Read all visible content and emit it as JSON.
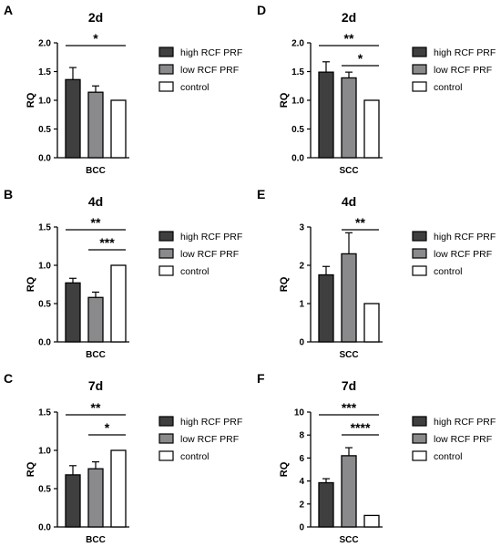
{
  "legend_labels": [
    "high RCF PRF",
    "low RCF PRF",
    "control"
  ],
  "colors": {
    "high": "#3f3f3f",
    "low": "#8a8a8c",
    "control": "#ffffff",
    "axis": "#000000"
  },
  "chart_data": [
    {
      "type": "bar",
      "panel_label": "A",
      "title": "2d",
      "categories": [
        "high RCF PRF",
        "low RCF PRF",
        "control"
      ],
      "values": [
        1.36,
        1.14,
        1.0
      ],
      "errors": [
        0.21,
        0.11,
        0
      ],
      "xlabel": "BCC",
      "ylabel": "RQ",
      "ylim": [
        0,
        2.0
      ],
      "yticks": [
        "0.0",
        "0.5",
        "1.0",
        "1.5",
        "2.0"
      ],
      "significance": [
        {
          "from": 0,
          "to": 2,
          "label": "*"
        }
      ],
      "legend": "right",
      "grid": false
    },
    {
      "type": "bar",
      "panel_label": "B",
      "title": "4d",
      "categories": [
        "high RCF PRF",
        "low RCF PRF",
        "control"
      ],
      "values": [
        0.77,
        0.58,
        1.0
      ],
      "errors": [
        0.06,
        0.07,
        0
      ],
      "xlabel": "BCC",
      "ylabel": "RQ",
      "ylim": [
        0,
        1.5
      ],
      "yticks": [
        "0.0",
        "0.5",
        "1.0",
        "1.5"
      ],
      "significance": [
        {
          "from": 0,
          "to": 2,
          "label": "**"
        },
        {
          "from": 1,
          "to": 2,
          "label": "***"
        }
      ],
      "legend": "right",
      "grid": false
    },
    {
      "type": "bar",
      "panel_label": "C",
      "title": "7d",
      "categories": [
        "high RCF PRF",
        "low RCF PRF",
        "control"
      ],
      "values": [
        0.68,
        0.76,
        1.0
      ],
      "errors": [
        0.12,
        0.09,
        0
      ],
      "xlabel": "BCC",
      "ylabel": "RQ",
      "ylim": [
        0,
        1.5
      ],
      "yticks": [
        "0.0",
        "0.5",
        "1.0",
        "1.5"
      ],
      "significance": [
        {
          "from": 0,
          "to": 2,
          "label": "**"
        },
        {
          "from": 1,
          "to": 2,
          "label": "*"
        }
      ],
      "legend": "right",
      "grid": false
    },
    {
      "type": "bar",
      "panel_label": "D",
      "title": "2d",
      "categories": [
        "high RCF PRF",
        "low RCF PRF",
        "control"
      ],
      "values": [
        1.49,
        1.39,
        1.0
      ],
      "errors": [
        0.18,
        0.1,
        0
      ],
      "xlabel": "SCC",
      "ylabel": "RQ",
      "ylim": [
        0,
        2.0
      ],
      "yticks": [
        "0.0",
        "0.5",
        "1.0",
        "1.5",
        "2.0"
      ],
      "significance": [
        {
          "from": 0,
          "to": 2,
          "label": "**"
        },
        {
          "from": 1,
          "to": 2,
          "label": "*"
        }
      ],
      "legend": "right",
      "grid": false
    },
    {
      "type": "bar",
      "panel_label": "E",
      "title": "4d",
      "categories": [
        "high RCF PRF",
        "low RCF PRF",
        "control"
      ],
      "values": [
        1.75,
        2.3,
        1.0
      ],
      "errors": [
        0.22,
        0.55,
        0
      ],
      "xlabel": "SCC",
      "ylabel": "RQ",
      "ylim": [
        0,
        3
      ],
      "yticks": [
        "0",
        "1",
        "2",
        "3"
      ],
      "significance": [
        {
          "from": 1,
          "to": 2,
          "label": "**"
        }
      ],
      "legend": "right",
      "grid": false
    },
    {
      "type": "bar",
      "panel_label": "F",
      "title": "7d",
      "categories": [
        "high RCF PRF",
        "low RCF PRF",
        "control"
      ],
      "values": [
        3.85,
        6.2,
        1.0
      ],
      "errors": [
        0.35,
        0.7,
        0
      ],
      "xlabel": "SCC",
      "ylabel": "RQ",
      "ylim": [
        0,
        10
      ],
      "yticks": [
        "0",
        "2",
        "4",
        "6",
        "8",
        "10"
      ],
      "significance": [
        {
          "from": 0,
          "to": 2,
          "label": "***"
        },
        {
          "from": 1,
          "to": 2,
          "label": "****"
        }
      ],
      "legend": "right",
      "grid": false
    }
  ]
}
